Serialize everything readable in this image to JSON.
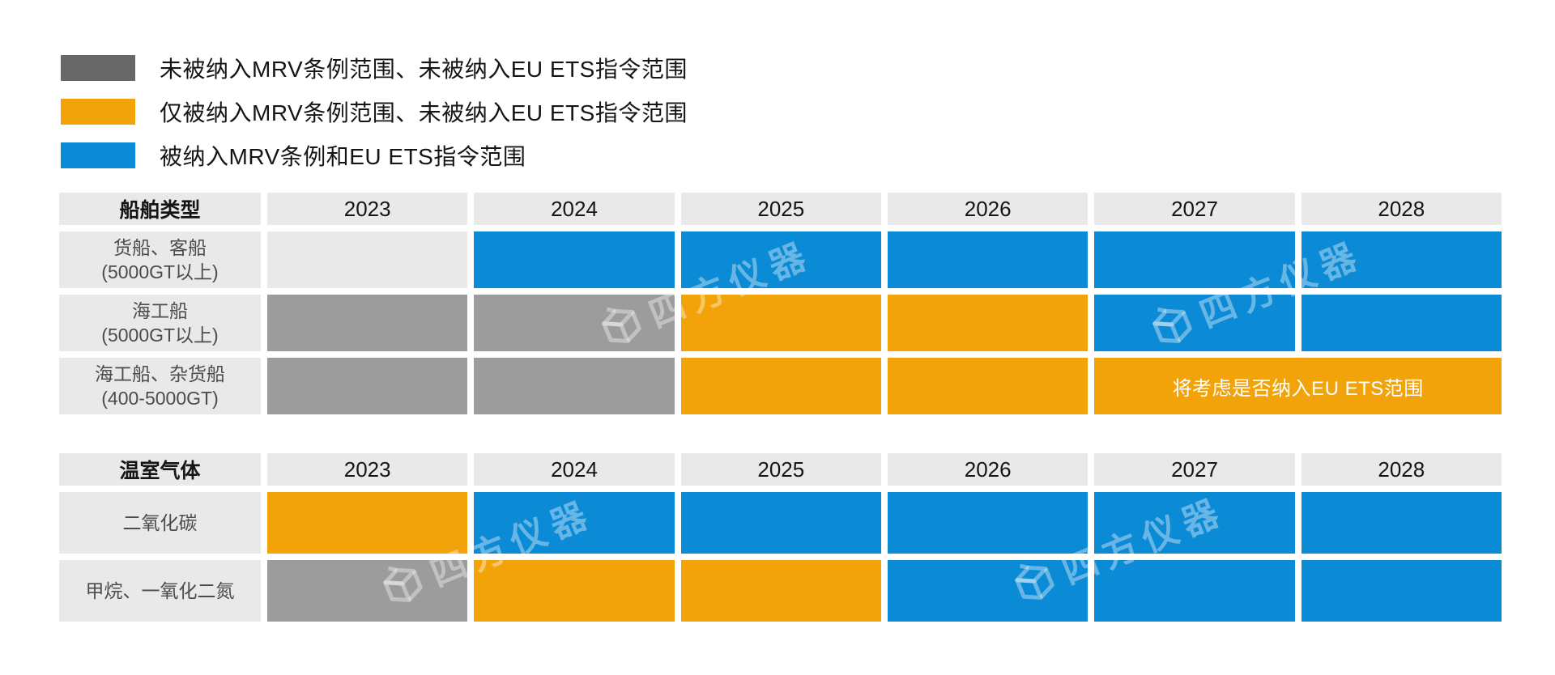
{
  "colors": {
    "legend_gray": "#686868",
    "gray_cell": "#9c9c9c",
    "orange": "#f2a30a",
    "blue": "#0b8ad5",
    "empty_cell": "#e9e9e9",
    "header_cell": "#e9e9e9"
  },
  "legend": {
    "items": [
      {
        "status": "excluded",
        "color": "#686868",
        "label": "未被纳入MRV条例范围、未被纳入EU ETS指令范围"
      },
      {
        "status": "mrv_only",
        "color": "#f2a30a",
        "label": "仅被纳入MRV条例范围、未被纳入EU ETS指令范围"
      },
      {
        "status": "mrv_and_ets",
        "color": "#0b8ad5",
        "label": "被纳入MRV条例和EU ETS指令范围"
      }
    ]
  },
  "watermark": {
    "text": "四方仪器"
  },
  "chart_data": [
    {
      "type": "table",
      "title_column": "船舶类型",
      "categories": [
        "2023",
        "2024",
        "2025",
        "2026",
        "2027",
        "2028"
      ],
      "legend_position": "top-left",
      "rows": [
        {
          "label": "货船、客船",
          "sublabel": "(5000GT以上)",
          "cells": [
            {
              "year": "2023",
              "status": "blank"
            },
            {
              "year": "2024",
              "status": "mrv_and_ets"
            },
            {
              "year": "2025",
              "status": "mrv_and_ets"
            },
            {
              "year": "2026",
              "status": "mrv_and_ets"
            },
            {
              "year": "2027",
              "status": "mrv_and_ets"
            },
            {
              "year": "2028",
              "status": "mrv_and_ets"
            }
          ]
        },
        {
          "label": "海工船",
          "sublabel": "(5000GT以上)",
          "cells": [
            {
              "year": "2023",
              "status": "excluded"
            },
            {
              "year": "2024",
              "status": "excluded"
            },
            {
              "year": "2025",
              "status": "mrv_only"
            },
            {
              "year": "2026",
              "status": "mrv_only"
            },
            {
              "year": "2027",
              "status": "mrv_and_ets"
            },
            {
              "year": "2028",
              "status": "mrv_and_ets"
            }
          ]
        },
        {
          "label": "海工船、杂货船",
          "sublabel": "(400-5000GT)",
          "cells": [
            {
              "year": "2023",
              "status": "excluded"
            },
            {
              "year": "2024",
              "status": "excluded"
            },
            {
              "year": "2025",
              "status": "mrv_only"
            },
            {
              "year": "2026",
              "status": "mrv_only"
            },
            {
              "year": "2027-2028",
              "status": "mrv_only",
              "span": 2,
              "text": "将考虑是否纳入EU ETS范围"
            }
          ]
        }
      ]
    },
    {
      "type": "table",
      "title_column": "温室气体",
      "categories": [
        "2023",
        "2024",
        "2025",
        "2026",
        "2027",
        "2028"
      ],
      "rows": [
        {
          "label": "二氧化碳",
          "sublabel": "",
          "cells": [
            {
              "year": "2023",
              "status": "mrv_only"
            },
            {
              "year": "2024",
              "status": "mrv_and_ets"
            },
            {
              "year": "2025",
              "status": "mrv_and_ets"
            },
            {
              "year": "2026",
              "status": "mrv_and_ets"
            },
            {
              "year": "2027",
              "status": "mrv_and_ets"
            },
            {
              "year": "2028",
              "status": "mrv_and_ets"
            }
          ]
        },
        {
          "label": "甲烷、一氧化二氮",
          "sublabel": "",
          "cells": [
            {
              "year": "2023",
              "status": "excluded"
            },
            {
              "year": "2024",
              "status": "mrv_only"
            },
            {
              "year": "2025",
              "status": "mrv_only"
            },
            {
              "year": "2026",
              "status": "mrv_and_ets"
            },
            {
              "year": "2027",
              "status": "mrv_and_ets"
            },
            {
              "year": "2028",
              "status": "mrv_and_ets"
            }
          ]
        }
      ]
    }
  ]
}
